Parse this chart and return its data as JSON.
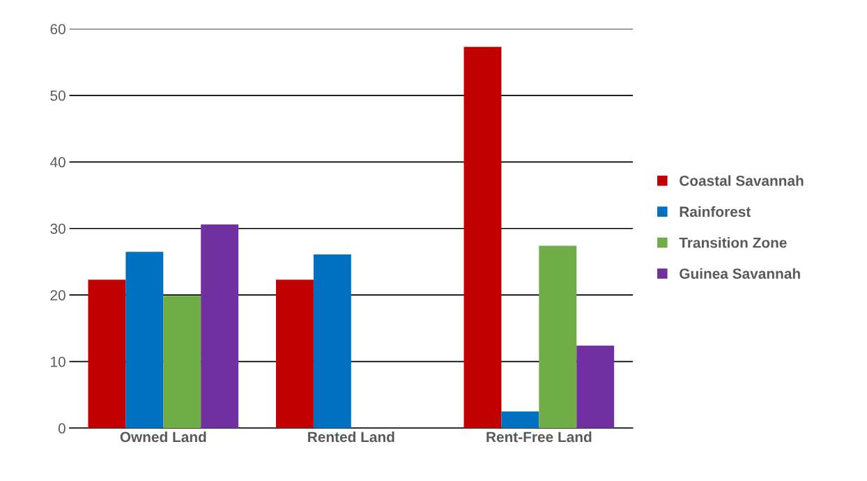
{
  "chart_data": {
    "type": "bar",
    "categories": [
      "Owned Land",
      "Rented Land",
      "Rent-Free Land"
    ],
    "series": [
      {
        "name": "Coastal Savannah",
        "color": "#c00000",
        "values": [
          22.3,
          22.3,
          57.3
        ]
      },
      {
        "name": "Rainforest",
        "color": "#0070c0",
        "values": [
          26.5,
          26.1,
          2.5
        ]
      },
      {
        "name": "Transition Zone",
        "color": "#70ad47",
        "values": [
          19.9,
          0,
          27.4
        ]
      },
      {
        "name": "Guinea Savannah",
        "color": "#7030a0",
        "values": [
          30.6,
          0,
          12.4
        ]
      }
    ],
    "ylim": [
      0,
      60
    ],
    "yticks": [
      0,
      10,
      20,
      30,
      40,
      50,
      60
    ],
    "grid": "y",
    "legend": "right"
  }
}
